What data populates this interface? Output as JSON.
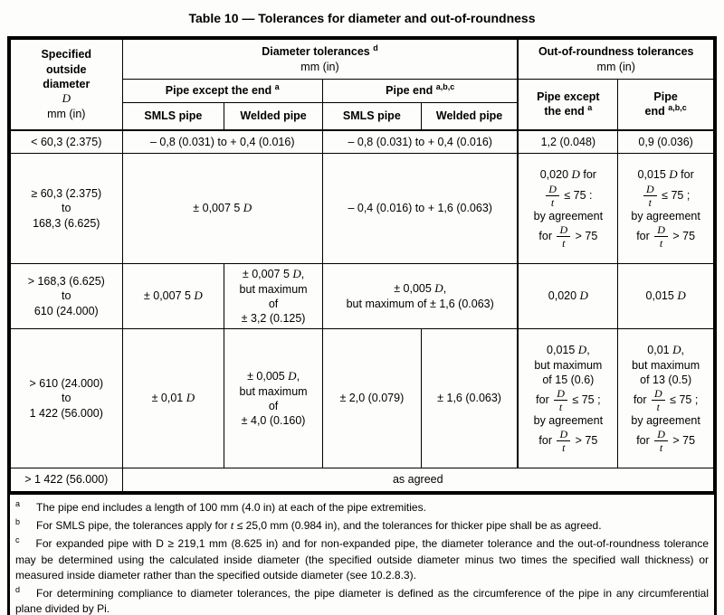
{
  "title": "Table 10 — Tolerances for diameter and out-of-roundness",
  "header": {
    "specified": [
      {
        "t": "text",
        "v": "Specified"
      },
      {
        "t": "br"
      },
      {
        "t": "text",
        "v": "outside"
      },
      {
        "t": "br"
      },
      {
        "t": "text",
        "v": "diameter"
      },
      {
        "t": "br"
      },
      {
        "t": "var",
        "v": "D"
      },
      {
        "t": "br"
      },
      {
        "t": "plain",
        "v": "mm (in)"
      }
    ],
    "diameter_group": [
      {
        "t": "text",
        "v": "Diameter tolerances "
      },
      {
        "t": "sup",
        "v": "d"
      },
      {
        "t": "br"
      },
      {
        "t": "plain",
        "v": "mm (in)"
      }
    ],
    "oor_group": [
      {
        "t": "text",
        "v": "Out-of-roundness tolerances"
      },
      {
        "t": "br"
      },
      {
        "t": "plain",
        "v": "mm (in)"
      }
    ],
    "pipe_except": [
      {
        "t": "text",
        "v": "Pipe except the end "
      },
      {
        "t": "sup",
        "v": "a"
      }
    ],
    "pipe_end": [
      {
        "t": "text",
        "v": "Pipe end "
      },
      {
        "t": "sup",
        "v": "a,b,c"
      }
    ],
    "smls": "SMLS pipe",
    "welded": "Welded pipe",
    "oor_pipe_except": [
      {
        "t": "text",
        "v": "Pipe except"
      },
      {
        "t": "br"
      },
      {
        "t": "text",
        "v": "the end "
      },
      {
        "t": "sup",
        "v": "a"
      }
    ],
    "oor_pipe_end": [
      {
        "t": "text",
        "v": "Pipe"
      },
      {
        "t": "br"
      },
      {
        "t": "text",
        "v": "end "
      },
      {
        "t": "sup",
        "v": "a,b,c"
      }
    ]
  },
  "rows": {
    "r1": {
      "range": [
        {
          "t": "text",
          "v": "< 60,3 (2.375)"
        }
      ],
      "dia_except": [
        {
          "t": "text",
          "v": "– 0,8 (0.031) to + 0,4 (0.016)"
        }
      ],
      "dia_end": [
        {
          "t": "text",
          "v": "– 0,8 (0.031) to + 0,4 (0.016)"
        }
      ],
      "oor_except": [
        {
          "t": "text",
          "v": "1,2 (0.048)"
        }
      ],
      "oor_end": [
        {
          "t": "text",
          "v": "0,9 (0.036)"
        }
      ]
    },
    "r2": {
      "range": [
        {
          "t": "text",
          "v": "≥ 60,3 (2.375)"
        },
        {
          "t": "br"
        },
        {
          "t": "text",
          "v": "to"
        },
        {
          "t": "br"
        },
        {
          "t": "text",
          "v": "168,3 (6.625)"
        }
      ],
      "dia_except": [
        {
          "t": "text",
          "v": "± 0,007 5 "
        },
        {
          "t": "var",
          "v": "D"
        }
      ],
      "dia_end": [
        {
          "t": "text",
          "v": "– 0,4 (0.016) to + 1,6 (0.063)"
        }
      ],
      "oor_except": [
        {
          "t": "text",
          "v": "0,020 "
        },
        {
          "t": "var",
          "v": "D"
        },
        {
          "t": "text",
          "v": " for"
        },
        {
          "t": "br"
        },
        {
          "t": "frac",
          "num": "D",
          "den": "t"
        },
        {
          "t": "text",
          "v": " ≤ 75 :"
        },
        {
          "t": "br"
        },
        {
          "t": "text",
          "v": "by agreement"
        },
        {
          "t": "br"
        },
        {
          "t": "text",
          "v": "for "
        },
        {
          "t": "frac",
          "num": "D",
          "den": "t"
        },
        {
          "t": "text",
          "v": " > 75"
        }
      ],
      "oor_end": [
        {
          "t": "text",
          "v": "0,015 "
        },
        {
          "t": "var",
          "v": "D"
        },
        {
          "t": "text",
          "v": " for"
        },
        {
          "t": "br"
        },
        {
          "t": "frac",
          "num": "D",
          "den": "t"
        },
        {
          "t": "text",
          "v": " ≤ 75 ;"
        },
        {
          "t": "br"
        },
        {
          "t": "text",
          "v": "by agreement"
        },
        {
          "t": "br"
        },
        {
          "t": "text",
          "v": "for "
        },
        {
          "t": "frac",
          "num": "D",
          "den": "t"
        },
        {
          "t": "text",
          "v": " > 75"
        }
      ]
    },
    "r3": {
      "range": [
        {
          "t": "text",
          "v": "> 168,3 (6.625)"
        },
        {
          "t": "br"
        },
        {
          "t": "text",
          "v": "to"
        },
        {
          "t": "br"
        },
        {
          "t": "text",
          "v": "610 (24.000)"
        }
      ],
      "dia_except_smls": [
        {
          "t": "text",
          "v": "± 0,007 5 "
        },
        {
          "t": "var",
          "v": "D"
        }
      ],
      "dia_except_welded": [
        {
          "t": "text",
          "v": "± 0,007 5 "
        },
        {
          "t": "var",
          "v": "D"
        },
        {
          "t": "text",
          "v": ","
        },
        {
          "t": "br"
        },
        {
          "t": "text",
          "v": "but maximum"
        },
        {
          "t": "br"
        },
        {
          "t": "text",
          "v": "of"
        },
        {
          "t": "br"
        },
        {
          "t": "text",
          "v": "± 3,2 (0.125)"
        }
      ],
      "dia_end": [
        {
          "t": "text",
          "v": "± 0,005 "
        },
        {
          "t": "var",
          "v": "D"
        },
        {
          "t": "text",
          "v": ","
        },
        {
          "t": "br"
        },
        {
          "t": "text",
          "v": "but maximum of ± 1,6 (0.063)"
        }
      ],
      "oor_except": [
        {
          "t": "text",
          "v": "0,020 "
        },
        {
          "t": "var",
          "v": "D"
        }
      ],
      "oor_end": [
        {
          "t": "text",
          "v": "0,015 "
        },
        {
          "t": "var",
          "v": "D"
        }
      ]
    },
    "r4": {
      "range": [
        {
          "t": "text",
          "v": "> 610 (24.000)"
        },
        {
          "t": "br"
        },
        {
          "t": "text",
          "v": "to"
        },
        {
          "t": "br"
        },
        {
          "t": "text",
          "v": "1 422 (56.000)"
        }
      ],
      "dia_except_smls": [
        {
          "t": "text",
          "v": "± 0,01 "
        },
        {
          "t": "var",
          "v": "D"
        }
      ],
      "dia_except_welded": [
        {
          "t": "text",
          "v": "± 0,005 "
        },
        {
          "t": "var",
          "v": "D"
        },
        {
          "t": "text",
          "v": ","
        },
        {
          "t": "br"
        },
        {
          "t": "text",
          "v": "but maximum"
        },
        {
          "t": "br"
        },
        {
          "t": "text",
          "v": "of"
        },
        {
          "t": "br"
        },
        {
          "t": "text",
          "v": "± 4,0 (0.160)"
        }
      ],
      "dia_end_smls": [
        {
          "t": "text",
          "v": "± 2,0 (0.079)"
        }
      ],
      "dia_end_welded": [
        {
          "t": "text",
          "v": "± 1,6 (0.063)"
        }
      ],
      "oor_except": [
        {
          "t": "text",
          "v": "0,015 "
        },
        {
          "t": "var",
          "v": "D"
        },
        {
          "t": "text",
          "v": ","
        },
        {
          "t": "br"
        },
        {
          "t": "text",
          "v": "but maximum"
        },
        {
          "t": "br"
        },
        {
          "t": "text",
          "v": "of 15 (0.6)"
        },
        {
          "t": "br"
        },
        {
          "t": "text",
          "v": "for "
        },
        {
          "t": "frac",
          "num": "D",
          "den": "t"
        },
        {
          "t": "text",
          "v": " ≤ 75 ;"
        },
        {
          "t": "br"
        },
        {
          "t": "text",
          "v": "by agreement"
        },
        {
          "t": "br"
        },
        {
          "t": "text",
          "v": "for "
        },
        {
          "t": "frac",
          "num": "D",
          "den": "t"
        },
        {
          "t": "text",
          "v": " > 75"
        }
      ],
      "oor_end": [
        {
          "t": "text",
          "v": "0,01 "
        },
        {
          "t": "var",
          "v": "D"
        },
        {
          "t": "text",
          "v": ","
        },
        {
          "t": "br"
        },
        {
          "t": "text",
          "v": "but maximum"
        },
        {
          "t": "br"
        },
        {
          "t": "text",
          "v": "of 13 (0.5)"
        },
        {
          "t": "br"
        },
        {
          "t": "text",
          "v": "for "
        },
        {
          "t": "frac",
          "num": "D",
          "den": "t"
        },
        {
          "t": "text",
          "v": " ≤ 75 ;"
        },
        {
          "t": "br"
        },
        {
          "t": "text",
          "v": "by agreement"
        },
        {
          "t": "br"
        },
        {
          "t": "text",
          "v": "for "
        },
        {
          "t": "frac",
          "num": "D",
          "den": "t"
        },
        {
          "t": "text",
          "v": " > 75"
        }
      ]
    },
    "r5": {
      "range": [
        {
          "t": "text",
          "v": "> 1 422 (56.000)"
        }
      ],
      "agreed": [
        {
          "t": "text",
          "v": "as agreed"
        }
      ]
    }
  },
  "footnotes": [
    {
      "label": "a",
      "rich": [
        {
          "t": "text",
          "v": "The pipe end includes a length of 100 mm (4.0 in) at each of the pipe extremities."
        }
      ]
    },
    {
      "label": "b",
      "rich": [
        {
          "t": "text",
          "v": "For SMLS pipe, the tolerances apply for "
        },
        {
          "t": "var",
          "v": "t"
        },
        {
          "t": "text",
          "v": " ≤ 25,0 mm (0.984 in), and the tolerances for thicker pipe shall be as agreed."
        }
      ]
    },
    {
      "label": "c",
      "rich": [
        {
          "t": "text",
          "v": "For expanded pipe with D ≥ 219,1 mm (8.625 in) and for non-expanded pipe, the diameter tolerance and the out-of-roundness tolerance may be determined using the calculated inside diameter (the specified outside diameter minus two times the specified wall thickness) or measured inside diameter rather than the specified outside diameter (see 10.2.8.3)."
        }
      ]
    },
    {
      "label": "d",
      "rich": [
        {
          "t": "text",
          "v": "For determining compliance to diameter tolerances, the pipe diameter is defined as the circumference of the pipe in any circumferential plane divided by Pi."
        }
      ]
    }
  ]
}
